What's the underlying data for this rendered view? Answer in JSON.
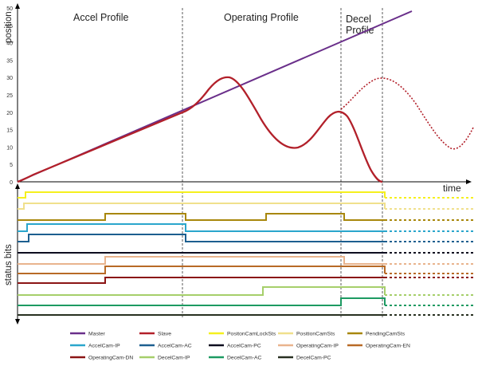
{
  "phases": {
    "accel": "Accel Profile",
    "operating": "Operating Profile",
    "decel_line1": "Decel",
    "decel_line2": "Profile"
  },
  "axes": {
    "position_label": "position",
    "time_label": "time",
    "status_label": "status bits",
    "y_ticks": [
      "0",
      "5",
      "10",
      "15",
      "20",
      "25",
      "30",
      "35",
      "40",
      "45",
      "50"
    ]
  },
  "legend": [
    {
      "label": "Master",
      "color": "#6a2f8a"
    },
    {
      "label": "Slave",
      "color": "#b2202a"
    },
    {
      "label": "PositonCamLockSts",
      "color": "#f5f01e"
    },
    {
      "label": "PositionCamSts",
      "color": "#f0e08c"
    },
    {
      "label": "PendingCamSts",
      "color": "#a8870c"
    },
    {
      "label": "AccelCam-IP",
      "color": "#2aa6cc"
    },
    {
      "label": "AccelCam-AC",
      "color": "#1d5f8f"
    },
    {
      "label": "AccelCam-PC",
      "color": "#0d0d1f"
    },
    {
      "label": "OperatingCam-IP",
      "color": "#e9b48d"
    },
    {
      "label": "OperatingCam-EN",
      "color": "#b86a26"
    },
    {
      "label": "OperatingCam-DN",
      "color": "#8b1515"
    },
    {
      "label": "DecelCam-IP",
      "color": "#a6cf6a"
    },
    {
      "label": "DecelCam-AC",
      "color": "#1d9a62"
    },
    {
      "label": "DecelCam-PC",
      "color": "#283021"
    }
  ],
  "signals": [
    {
      "name": "PositonCamLockSts",
      "color": "#f5f01e",
      "levels": [
        [
          0,
          0
        ],
        [
          32,
          1
        ],
        [
          476,
          1
        ],
        [
          483,
          0
        ]
      ]
    },
    {
      "name": "PositionCamSts",
      "color": "#f0e08c",
      "levels": [
        [
          0,
          0
        ],
        [
          30,
          1
        ],
        [
          476,
          1
        ],
        [
          483,
          0
        ]
      ]
    },
    {
      "name": "PendingCamSts",
      "color": "#a8870c",
      "levels": [
        [
          0,
          0
        ],
        [
          132,
          1
        ],
        [
          229,
          1
        ],
        [
          233,
          0
        ],
        [
          330,
          0
        ],
        [
          334,
          1
        ],
        [
          428,
          1
        ],
        [
          432,
          0
        ]
      ]
    },
    {
      "name": "AccelCam-IP",
      "color": "#2aa6cc",
      "levels": [
        [
          0,
          0
        ],
        [
          34,
          1
        ],
        [
          229,
          1
        ],
        [
          233,
          0
        ]
      ]
    },
    {
      "name": "AccelCam-AC",
      "color": "#1d5f8f",
      "levels": [
        [
          0,
          0
        ],
        [
          36,
          1
        ],
        [
          229,
          1
        ],
        [
          233,
          0
        ]
      ]
    },
    {
      "name": "AccelCam-PC",
      "color": "#0d0d1f",
      "levels": [
        [
          0,
          0
        ]
      ]
    },
    {
      "name": "OperatingCam-IP",
      "color": "#e9b48d",
      "levels": [
        [
          0,
          0
        ],
        [
          132,
          1
        ],
        [
          428,
          1
        ],
        [
          432,
          0
        ]
      ]
    },
    {
      "name": "OperatingCam-EN",
      "color": "#b86a26",
      "levels": [
        [
          0,
          0
        ],
        [
          132,
          1
        ],
        [
          476,
          1
        ],
        [
          483,
          0
        ]
      ]
    },
    {
      "name": "OperatingCam-DN",
      "color": "#8b1515",
      "levels": [
        [
          0,
          0
        ],
        [
          132,
          1
        ]
      ]
    },
    {
      "name": "DecelCam-IP",
      "color": "#a6cf6a",
      "levels": [
        [
          0,
          0
        ],
        [
          330,
          1
        ],
        [
          476,
          1
        ],
        [
          483,
          0
        ]
      ]
    },
    {
      "name": "DecelCam-AC",
      "color": "#1d9a62",
      "levels": [
        [
          0,
          0
        ],
        [
          428,
          1
        ],
        [
          476,
          1
        ],
        [
          483,
          0
        ]
      ]
    },
    {
      "name": "DecelCam-PC",
      "color": "#283021",
      "levels": [
        [
          0,
          0
        ]
      ]
    }
  ]
}
